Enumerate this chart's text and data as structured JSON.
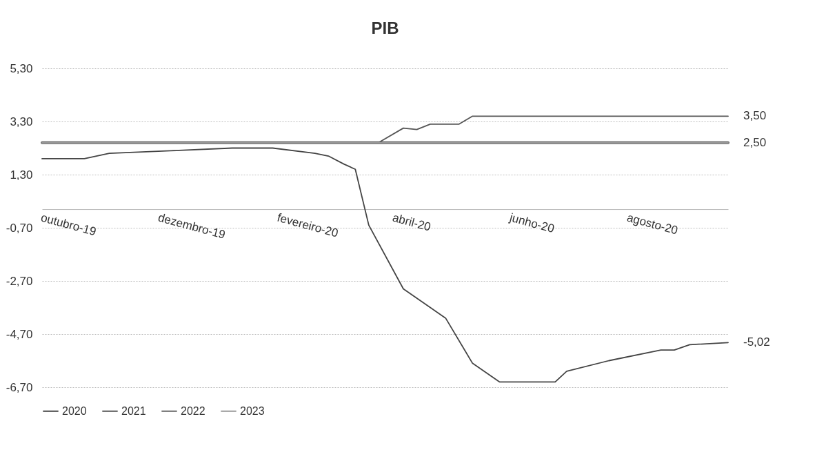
{
  "chart_data": {
    "type": "line",
    "title": "PIB",
    "xlim": [
      "2019-10-01",
      "2020-09-22"
    ],
    "xticks": [
      {
        "value": "2019-10-01",
        "label": "outubro-19"
      },
      {
        "value": "2019-12-01",
        "label": "dezembro-19"
      },
      {
        "value": "2020-02-01",
        "label": "fevereiro-20"
      },
      {
        "value": "2020-04-01",
        "label": "abril-20"
      },
      {
        "value": "2020-06-01",
        "label": "junho-20"
      },
      {
        "value": "2020-08-01",
        "label": "agosto-20"
      }
    ],
    "ylim": [
      -6.7,
      5.3
    ],
    "yticks": [
      {
        "value": -6.7,
        "label": "-6,70"
      },
      {
        "value": -4.7,
        "label": "-4,70"
      },
      {
        "value": -2.7,
        "label": "-2,70"
      },
      {
        "value": -0.7,
        "label": "-0,70"
      },
      {
        "value": 1.3,
        "label": "1,30"
      },
      {
        "value": 3.3,
        "label": "3,30"
      },
      {
        "value": 5.3,
        "label": "5,30"
      }
    ],
    "grid": "y",
    "legend": "bottom",
    "line_style": "solid",
    "series": [
      {
        "name": "2020",
        "color": "#444444",
        "x": [
          "2019-10-01",
          "2019-10-23",
          "2019-11-05",
          "2019-12-07",
          "2020-01-08",
          "2020-01-29",
          "2020-02-20",
          "2020-02-27",
          "2020-03-06",
          "2020-03-12",
          "2020-03-19",
          "2020-04-06",
          "2020-04-20",
          "2020-04-28",
          "2020-05-12",
          "2020-05-26",
          "2020-06-24",
          "2020-06-30",
          "2020-07-22",
          "2020-08-18",
          "2020-08-25",
          "2020-09-02",
          "2020-09-22"
        ],
        "values": [
          1.9,
          1.9,
          2.1,
          2.2,
          2.3,
          2.3,
          2.1,
          2.0,
          1.7,
          1.5,
          -0.6,
          -3.0,
          -3.7,
          -4.1,
          -5.8,
          -6.5,
          -6.5,
          -6.1,
          -5.7,
          -5.3,
          -5.3,
          -5.1,
          -5.02
        ],
        "value_labels": [
          null,
          null,
          null,
          null,
          null,
          null,
          null,
          null,
          null,
          null,
          null,
          null,
          null,
          null,
          null,
          null,
          null,
          null,
          null,
          null,
          null,
          null,
          "-5,02"
        ]
      },
      {
        "name": "2021",
        "color": "#555555",
        "x": [
          "2019-10-01",
          "2020-03-24",
          "2020-04-06",
          "2020-04-13",
          "2020-04-20",
          "2020-05-05",
          "2020-05-12",
          "2020-09-22"
        ],
        "values": [
          2.5,
          2.5,
          3.05,
          3.0,
          3.2,
          3.2,
          3.5,
          3.5
        ],
        "value_labels": [
          null,
          null,
          null,
          null,
          null,
          null,
          null,
          "3,50"
        ]
      },
      {
        "name": "2022",
        "color": "#666666",
        "x": [
          "2019-10-01",
          "2020-09-22"
        ],
        "values": [
          2.5,
          2.5
        ],
        "value_labels": [
          null,
          null
        ]
      },
      {
        "name": "2023",
        "color": "#999999",
        "x": [
          "2019-10-01",
          "2020-09-22"
        ],
        "values": [
          2.5,
          2.5
        ],
        "value_labels": [
          null,
          "2,50"
        ]
      }
    ]
  }
}
